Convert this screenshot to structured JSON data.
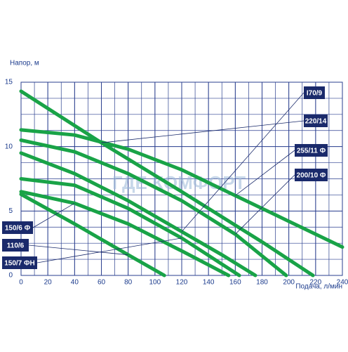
{
  "chart_data": {
    "type": "line",
    "y_label": "Напор,  м",
    "x_label": "Подача,  л/мин",
    "watermark": "ГДЕ КОМФОРТ",
    "xlim": [
      0,
      240
    ],
    "xticks": [
      0,
      20,
      40,
      60,
      80,
      100,
      120,
      140,
      160,
      180,
      200,
      220,
      240
    ],
    "ylim": [
      0,
      15
    ],
    "yticks": [
      0,
      5,
      10,
      15
    ],
    "grid": true,
    "series": [
      {
        "name": "220/14",
        "color": "#19a347",
        "x": [
          0,
          60,
          120,
          180,
          218
        ],
        "values": [
          14.3,
          10.3,
          6.5,
          2.6,
          0
        ]
      },
      {
        "name": "255/11 Ф",
        "color": "#19a347",
        "x": [
          0,
          40,
          80,
          120,
          160,
          200,
          240
        ],
        "values": [
          11.3,
          10.9,
          9.8,
          8.2,
          6.2,
          4.2,
          2.2
        ]
      },
      {
        "name": "200/10 Ф",
        "color": "#19a347",
        "x": [
          0,
          40,
          80,
          120,
          160,
          198
        ],
        "values": [
          10.5,
          9.6,
          7.9,
          5.8,
          3.2,
          0
        ]
      },
      {
        "name": "I70/9",
        "color": "#19a347",
        "x": [
          0,
          40,
          80,
          120,
          150,
          175
        ],
        "values": [
          9.5,
          7.9,
          5.8,
          3.4,
          1.6,
          0
        ]
      },
      {
        "name": "150/7 ФН",
        "color": "#19a347",
        "x": [
          0,
          40,
          80,
          120,
          163
        ],
        "values": [
          7.5,
          7.0,
          5.2,
          2.9,
          0
        ]
      },
      {
        "name": "150/6 Ф",
        "color": "#19a347",
        "x": [
          0,
          40,
          80,
          120,
          155
        ],
        "values": [
          6.5,
          5.6,
          4.0,
          1.9,
          0
        ]
      },
      {
        "name": "110/6",
        "color": "#19a347",
        "x": [
          0,
          40,
          80,
          107
        ],
        "values": [
          6.3,
          4.0,
          1.6,
          0
        ]
      }
    ]
  }
}
